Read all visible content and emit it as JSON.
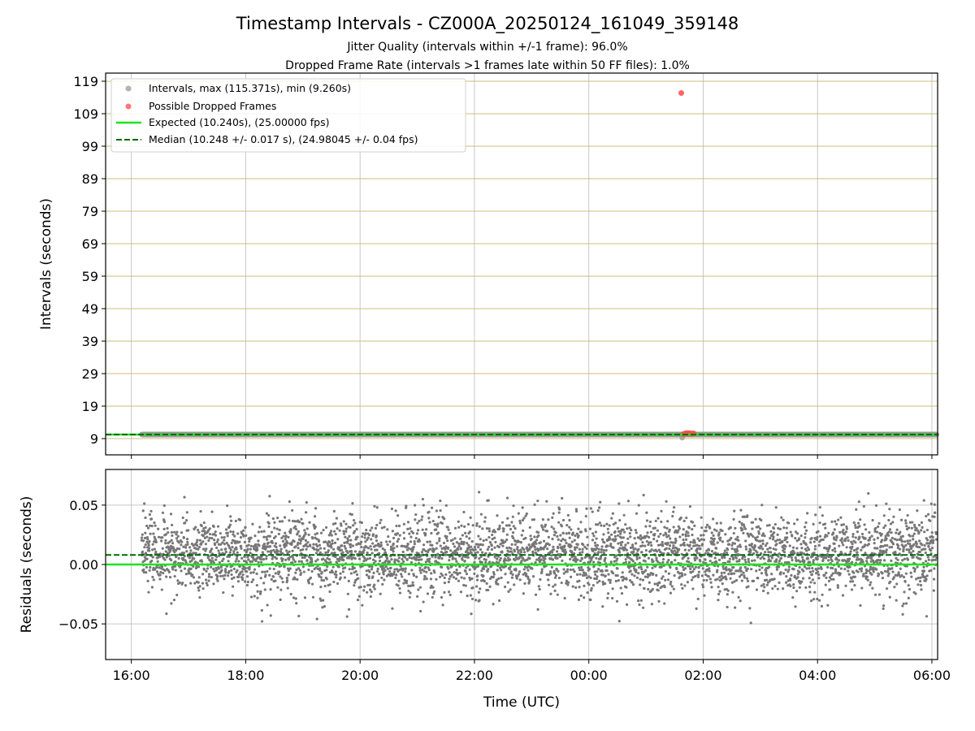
{
  "chart_data": [
    {
      "type": "scatter",
      "title": "Timestamp Intervals - CZ000A_20250124_161049_359148",
      "subtitle_lines": [
        "Jitter Quality (intervals within +/-1 frame): 96.0%",
        "Dropped Frame Rate (intervals >1 frames late within 50 FF files): 1.0%"
      ],
      "xlabel": "",
      "ylabel": "Intervals (seconds)",
      "x_tick_labels_visible": false,
      "xlim_hours_rel_16utc": [
        -0.45,
        14.1
      ],
      "ylim": [
        4.0,
        121.5
      ],
      "yticks": [
        9,
        19,
        29,
        39,
        49,
        59,
        69,
        79,
        89,
        99,
        109,
        119
      ],
      "grid": {
        "vertical": true,
        "horizontal": true,
        "horizontal_color": "#d2bc7a"
      },
      "legend_placement": "upper-left",
      "colors": {
        "intervals": "#9a9a9a",
        "dropped": "#ff4a4a",
        "expected": "#19e619",
        "median": "#006b00"
      },
      "series": [
        {
          "name": "Intervals, max (115.371s), min (9.260s)",
          "marker": "circle",
          "x_start_time": "16:10:49",
          "x_end_time": "06:05",
          "typical_value": 10.248,
          "spread": 0.017,
          "max": 115.371,
          "min": 9.26
        },
        {
          "name": "Possible Dropped Frames",
          "marker": "circle",
          "points": [
            {
              "time": "01:37",
              "value": 115.371
            },
            {
              "time": "01:39",
              "value": 10.35
            },
            {
              "time": "01:41",
              "value": 10.6
            },
            {
              "time": "01:42",
              "value": 10.5
            },
            {
              "time": "01:43",
              "value": 10.7
            },
            {
              "time": "01:44",
              "value": 10.55
            },
            {
              "time": "01:45",
              "value": 10.65
            },
            {
              "time": "01:46",
              "value": 10.5
            },
            {
              "time": "01:47",
              "value": 10.6
            },
            {
              "time": "01:48",
              "value": 10.45
            },
            {
              "time": "01:49",
              "value": 10.55
            },
            {
              "time": "01:50",
              "value": 10.6
            }
          ]
        },
        {
          "name": "Expected (10.240s), (25.00000 fps)",
          "line_style": "solid",
          "value": 10.24
        },
        {
          "name": "Median (10.248 +/- 0.017 s), (24.98045 +/- 0.04 fps)",
          "line_style": "dashed",
          "value": 10.248
        }
      ]
    },
    {
      "type": "scatter",
      "title": "",
      "xlabel": "Time (UTC)",
      "ylabel": "Residuals (seconds)",
      "xlim_hours_rel_16utc": [
        -0.45,
        14.1
      ],
      "ylim": [
        -0.08,
        0.08
      ],
      "yticks": [
        0.05,
        0.0,
        -0.05
      ],
      "ytick_labels": [
        "0.05",
        "0.00",
        "−0.05"
      ],
      "xticks": [
        "16:00",
        "18:00",
        "20:00",
        "22:00",
        "00:00",
        "02:00",
        "04:00",
        "06:00"
      ],
      "grid": {
        "vertical": true,
        "horizontal": true
      },
      "colors": {
        "residuals": "#777777",
        "expected": "#19e619",
        "median": "#006b00"
      },
      "series": [
        {
          "marker": "circle",
          "x_start_time": "16:10:49",
          "x_end_time": "06:05",
          "center": 0.008,
          "spread": 0.017,
          "range": [
            -0.053,
            0.061
          ]
        },
        {
          "line_style": "solid",
          "value": 0.0
        },
        {
          "line_style": "dashed",
          "value": 0.008
        }
      ]
    }
  ]
}
